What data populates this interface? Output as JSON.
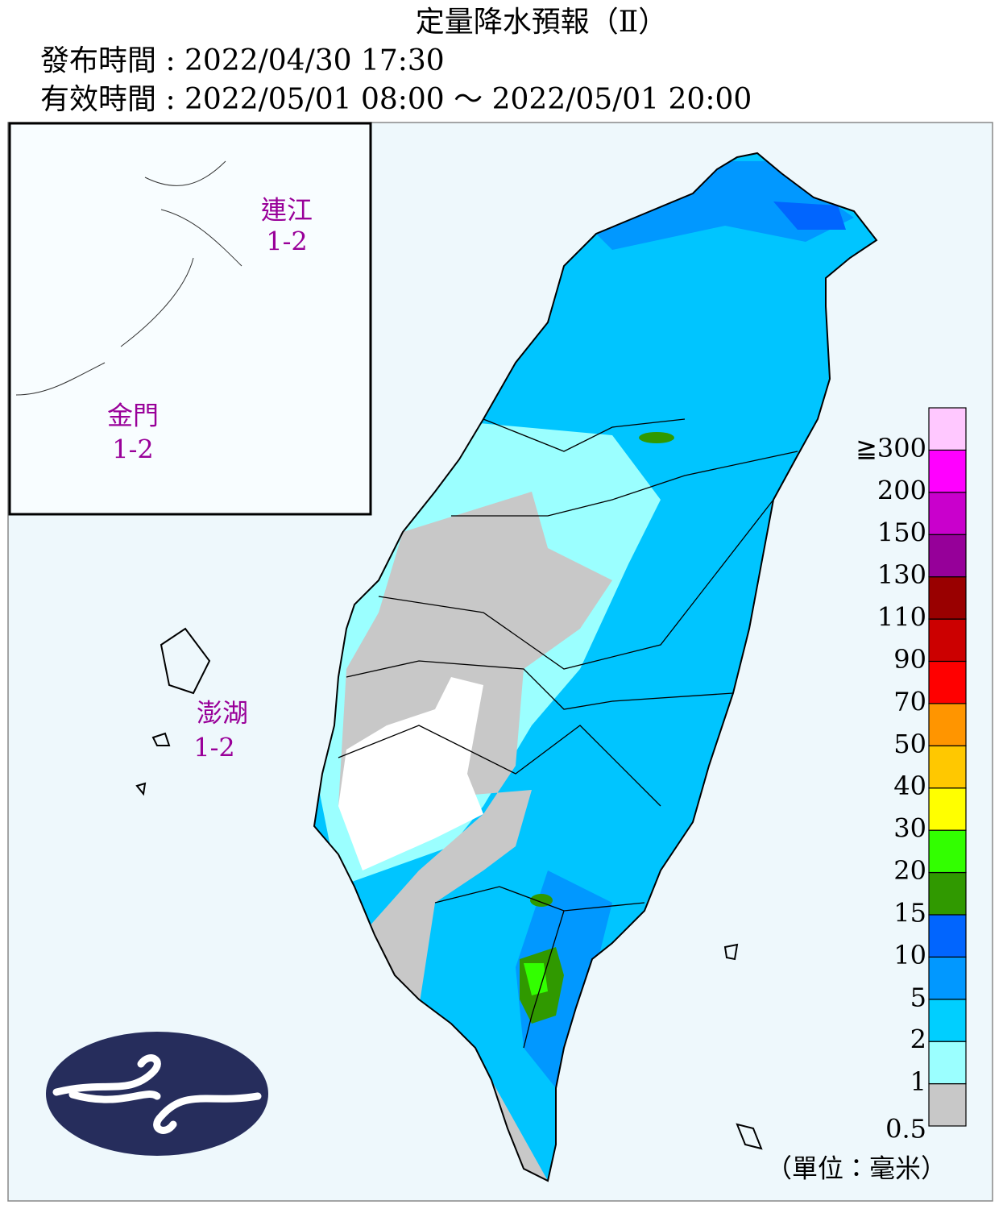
{
  "header": {
    "title": "定量降水預報（Ⅱ）",
    "issued": "發布時間 : 2022/04/30 17:30",
    "valid": "有效時間 : 2022/05/01 08:00 ～ 2022/05/01 20:00"
  },
  "regions": [
    {
      "name": "連江",
      "range": "1-2"
    },
    {
      "name": "金門",
      "range": "1-2"
    },
    {
      "name": "澎湖",
      "range": "1-2"
    }
  ],
  "legend": {
    "colors": [
      "#c8c8c8",
      "#9bffff",
      "#00cfff",
      "#0198ff",
      "#0165fe",
      "#309900",
      "#32ff00",
      "#ffff00",
      "#ffc800",
      "#ff9500",
      "#ff0000",
      "#cc0000",
      "#990000",
      "#960099",
      "#c900cc",
      "#ff00ff",
      "#ffc8ff"
    ],
    "labels": [
      "0.5",
      "1",
      "2",
      "5",
      "10",
      "15",
      "20",
      "30",
      "40",
      "50",
      "70",
      "90",
      "110",
      "130",
      "150",
      "200",
      "≧300"
    ],
    "unit": "（單位：毫米）"
  }
}
